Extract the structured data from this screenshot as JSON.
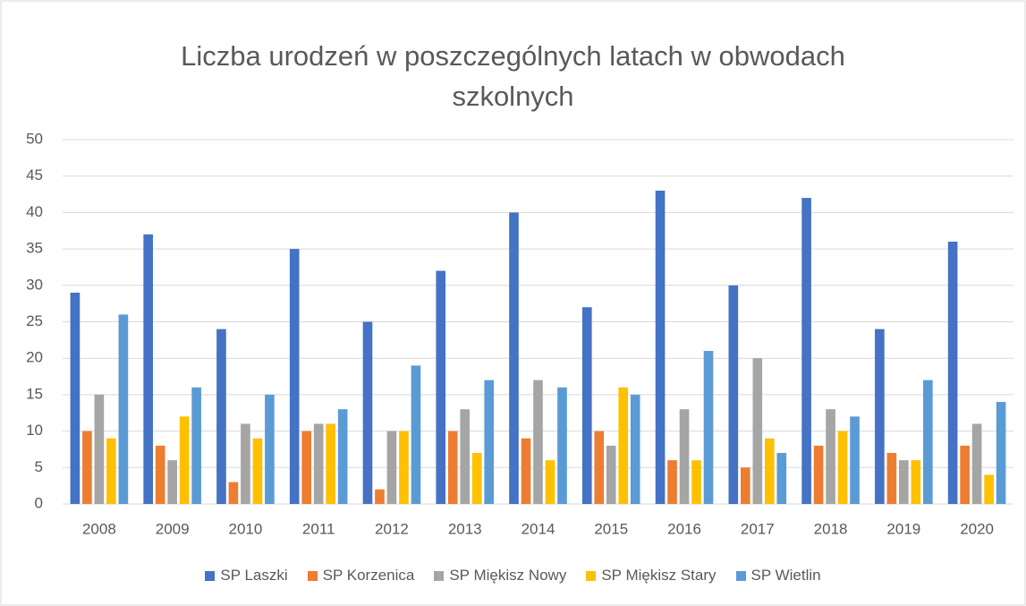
{
  "chart_data": {
    "type": "bar",
    "title": "Liczba urodzeń w poszczególnych latach w obwodach szkolnych",
    "categories": [
      "2008",
      "2009",
      "2010",
      "2011",
      "2012",
      "2013",
      "2014",
      "2015",
      "2016",
      "2017",
      "2018",
      "2019",
      "2020"
    ],
    "series": [
      {
        "name": "SP Laszki",
        "color": "#4472c4",
        "values": [
          29,
          37,
          24,
          35,
          25,
          32,
          40,
          27,
          43,
          30,
          42,
          24,
          36
        ]
      },
      {
        "name": "SP Korzenica",
        "color": "#ed7d31",
        "values": [
          10,
          8,
          3,
          10,
          2,
          10,
          9,
          10,
          6,
          5,
          8,
          7,
          8
        ]
      },
      {
        "name": "SP Miękisz Nowy",
        "color": "#a5a5a5",
        "values": [
          15,
          6,
          11,
          11,
          10,
          13,
          17,
          8,
          13,
          20,
          13,
          6,
          11
        ]
      },
      {
        "name": "SP Miękisz Stary",
        "color": "#ffc000",
        "values": [
          9,
          12,
          9,
          11,
          10,
          7,
          6,
          16,
          6,
          9,
          10,
          6,
          4
        ]
      },
      {
        "name": "SP Wietlin",
        "color": "#5b9bd5",
        "values": [
          26,
          16,
          15,
          13,
          19,
          17,
          16,
          15,
          21,
          7,
          12,
          17,
          14
        ]
      }
    ],
    "ylim": [
      0,
      50
    ],
    "yticks": [
      0,
      5,
      10,
      15,
      20,
      25,
      30,
      35,
      40,
      45,
      50
    ],
    "grid": true,
    "legend": "bottom"
  }
}
